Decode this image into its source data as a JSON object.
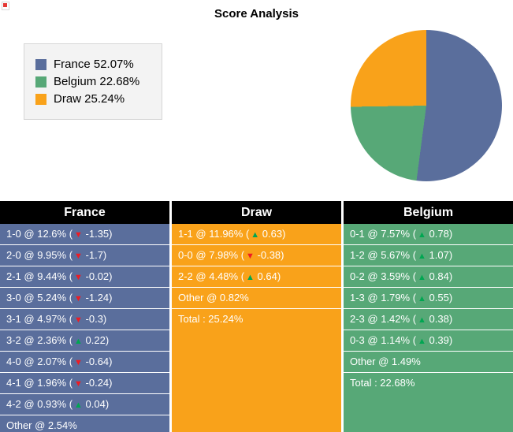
{
  "title": "Score Analysis",
  "colors": {
    "france": "#5a6e9c",
    "belgium": "#57a877",
    "draw": "#f9a21a",
    "header_bg": "#000000",
    "header_text": "#ffffff",
    "row_text": "#ffffff",
    "up_arrow": "#00a651",
    "down_arrow": "#ed1c24",
    "legend_bg": "#f3f3f3"
  },
  "icons": {
    "up": "▲",
    "down": "▼",
    "corner": "broken-image-icon"
  },
  "chart_data": {
    "type": "pie",
    "title": "Score Analysis",
    "labels": [
      "France",
      "Belgium",
      "Draw"
    ],
    "values": [
      52.07,
      22.68,
      25.24
    ],
    "colors": [
      "#5a6e9c",
      "#57a877",
      "#f9a21a"
    ],
    "legend_position": "top-left",
    "start_angle_deg": 0,
    "direction": "clockwise"
  },
  "legend": {
    "items": [
      {
        "label": "France 52.07%",
        "color": "#5a6e9c"
      },
      {
        "label": "Belgium 22.68%",
        "color": "#57a877"
      },
      {
        "label": "Draw 25.24%",
        "color": "#f9a21a"
      }
    ]
  },
  "columns": [
    {
      "header": "France",
      "body_color": "#5a6e9c",
      "rows": [
        {
          "text": "1-0 @ 12.6%",
          "delta": "-1.35",
          "dir": "down"
        },
        {
          "text": "2-0 @ 9.95%",
          "delta": "-1.7",
          "dir": "down"
        },
        {
          "text": "2-1 @ 9.44%",
          "delta": "-0.02",
          "dir": "down"
        },
        {
          "text": "3-0 @ 5.24%",
          "delta": "-1.24",
          "dir": "down"
        },
        {
          "text": "3-1 @ 4.97%",
          "delta": "-0.3",
          "dir": "down"
        },
        {
          "text": "3-2 @ 2.36%",
          "delta": "0.22",
          "dir": "up"
        },
        {
          "text": "4-0 @ 2.07%",
          "delta": "-0.64",
          "dir": "down"
        },
        {
          "text": "4-1 @ 1.96%",
          "delta": "-0.24",
          "dir": "down"
        },
        {
          "text": "4-2 @ 0.93%",
          "delta": "0.04",
          "dir": "up"
        },
        {
          "text": "Other @ 2.54%"
        }
      ]
    },
    {
      "header": "Draw",
      "body_color": "#f9a21a",
      "rows": [
        {
          "text": "1-1 @ 11.96%",
          "delta": "0.63",
          "dir": "up"
        },
        {
          "text": "0-0 @ 7.98%",
          "delta": "-0.38",
          "dir": "down"
        },
        {
          "text": "2-2 @ 4.48%",
          "delta": "0.64",
          "dir": "up"
        },
        {
          "text": "Other @ 0.82%"
        },
        {
          "text": "Total : 25.24%",
          "is_total": true
        }
      ]
    },
    {
      "header": "Belgium",
      "body_color": "#57a877",
      "rows": [
        {
          "text": "0-1 @ 7.57%",
          "delta": "0.78",
          "dir": "up"
        },
        {
          "text": "1-2 @ 5.67%",
          "delta": "1.07",
          "dir": "up"
        },
        {
          "text": "0-2 @ 3.59%",
          "delta": "0.84",
          "dir": "up"
        },
        {
          "text": "1-3 @ 1.79%",
          "delta": "0.55",
          "dir": "up"
        },
        {
          "text": "2-3 @ 1.42%",
          "delta": "0.38",
          "dir": "up"
        },
        {
          "text": "0-3 @ 1.14%",
          "delta": "0.39",
          "dir": "up"
        },
        {
          "text": "Other @ 1.49%"
        },
        {
          "text": "Total : 22.68%",
          "is_total": true
        }
      ]
    }
  ]
}
